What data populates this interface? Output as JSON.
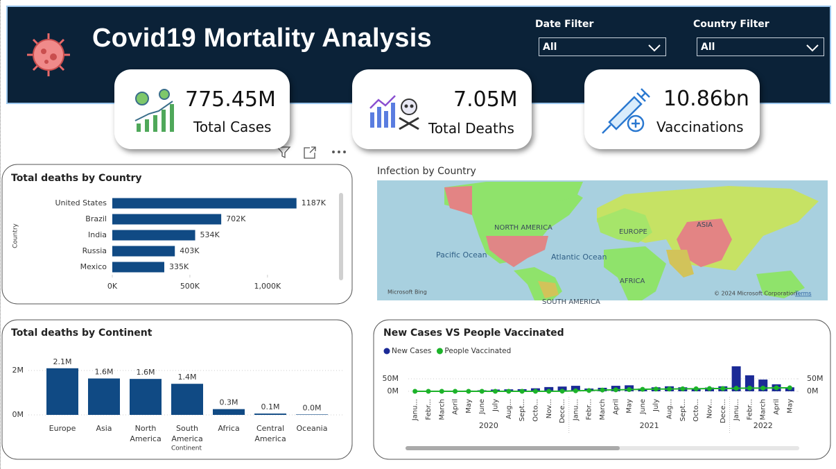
{
  "header": {
    "title": "Covid19 Mortality Analysis",
    "filters": [
      {
        "label": "Date Filter",
        "value": "All"
      },
      {
        "label": "Country Filter",
        "value": "All"
      }
    ]
  },
  "kpis": [
    {
      "value": "775.45M",
      "label": "Total Cases"
    },
    {
      "value": "7.05M",
      "label": "Total Deaths"
    },
    {
      "value": "10.86bn",
      "label": "Vaccinations"
    }
  ],
  "map": {
    "title": "Infection by Country",
    "labels": [
      "NORTH AMERICA",
      "EUROPE",
      "ASIA",
      "AFRICA",
      "SOUTH AMERICA",
      "Pacific Ocean",
      "Atlantic Ocean",
      "Microsoft Bing",
      "© 2024 Microsoft Corporation",
      "Terms"
    ]
  },
  "chart_data": [
    {
      "type": "hbar",
      "title": "Total deaths by Country",
      "y_label": "Country",
      "categories": [
        "United States",
        "Brazil",
        "India",
        "Russia",
        "Mexico"
      ],
      "values": [
        1187000,
        702000,
        534000,
        403000,
        335000
      ],
      "value_labels": [
        "1187K",
        "702K",
        "534K",
        "403K",
        "335K"
      ],
      "color": "#104a84",
      "xlim": [
        0,
        1300000
      ],
      "xticks": [
        {
          "value": 0,
          "label": "0K"
        },
        {
          "value": 500000,
          "label": "500K"
        },
        {
          "value": 1000000,
          "label": "1,000K"
        }
      ]
    },
    {
      "type": "bar",
      "title": "Total deaths by Continent",
      "x_label": "Continent",
      "categories": [
        "Europe",
        "Asia",
        "North America",
        "South America",
        "Africa",
        "Central America",
        "Oceania"
      ],
      "values": [
        2100000,
        1640000,
        1620000,
        1400000,
        260000,
        60000,
        20000
      ],
      "value_labels": [
        "2.1M",
        "1.6M",
        "1.6M",
        "1.4M",
        "0.3M",
        "0.1M",
        "0.0M"
      ],
      "color": "#104a84",
      "ylim": [
        0,
        2300000
      ],
      "yticks": [
        {
          "value": 0,
          "label": "0M"
        },
        {
          "value": 2000000,
          "label": "2M"
        }
      ],
      "grid": true
    },
    {
      "type": "combo",
      "title": "New Cases VS People Vaccinated",
      "categories": [
        "Janu...",
        "Febr...",
        "March",
        "April",
        "May",
        "June",
        "July",
        "Aug...",
        "Sept...",
        "Octo...",
        "Nov...",
        "Dece...",
        "Janu...",
        "Febr...",
        "March",
        "April",
        "May",
        "June",
        "July",
        "Aug...",
        "Sept...",
        "Octo...",
        "Nov...",
        "Dece...",
        "Janu...",
        "Febr...",
        "March",
        "April",
        "May"
      ],
      "x_group_labels": [
        "2020",
        "2021",
        "2022"
      ],
      "series": [
        {
          "name": "New Cases",
          "type": "bar",
          "color": "#1b2a96",
          "values": [
            100000,
            300000,
            2000000,
            2500000,
            3000000,
            4000000,
            7000000,
            7800000,
            8500000,
            12000000,
            17000000,
            19000000,
            22000000,
            11000000,
            14000000,
            22000000,
            24000000,
            11000000,
            16000000,
            20000000,
            16000000,
            12000000,
            15000000,
            20000000,
            100000000,
            64000000,
            47000000,
            28000000,
            16000000
          ]
        },
        {
          "name": "People Vaccinated",
          "type": "line",
          "axis": "y2",
          "color": "#1db32a",
          "values": [
            0,
            0,
            0,
            0,
            0,
            0,
            0,
            0,
            0,
            0,
            0,
            500000,
            2000000,
            3000000,
            5000000,
            6000000,
            7000000,
            8000000,
            9000000,
            9000000,
            10000000,
            10000000,
            11000000,
            11000000,
            12000000,
            13000000,
            13000000,
            14000000,
            14000000
          ]
        }
      ],
      "ylim": [
        0,
        120000000
      ],
      "yticks": [
        {
          "value": 0,
          "label": "0M"
        },
        {
          "value": 50000000,
          "label": "50M"
        }
      ],
      "y2lim": [
        0,
        120000000
      ],
      "y2ticks": [
        {
          "value": 0,
          "label": "0M"
        },
        {
          "value": 50000000,
          "label": "50M"
        }
      ],
      "grid": true
    }
  ]
}
